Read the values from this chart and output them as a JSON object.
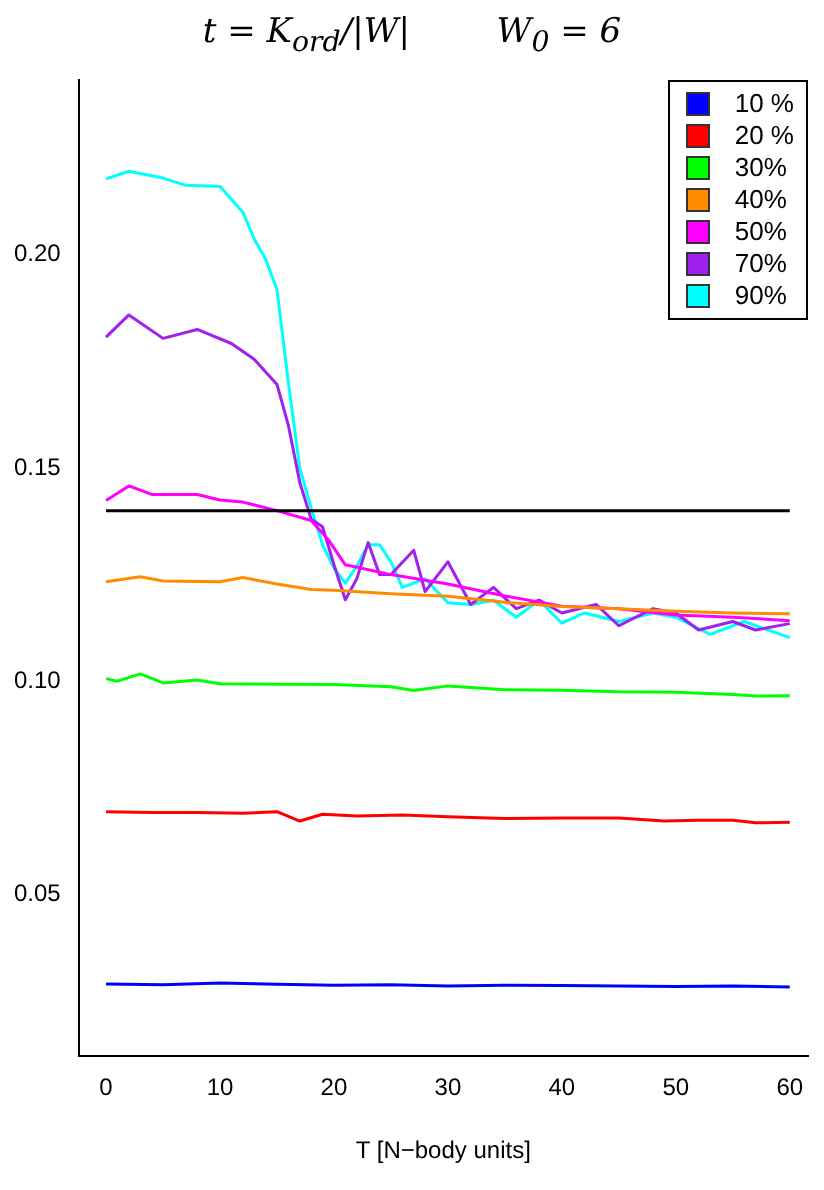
{
  "chart_data": {
    "type": "line",
    "title": "t = K$_{ord}$/|W|        W$_{0}$ = 6",
    "xlabel": "T [N−body units]",
    "xlim": [
      -2.4,
      61.6
    ],
    "xticks": [
      0,
      10,
      20,
      30,
      40,
      50,
      60
    ],
    "ylim": [
      0.012,
      0.241
    ],
    "yticks": [
      0.05,
      {
        "value": 0.1,
        "label": "0.10"
      },
      0.15,
      {
        "value": 0.2,
        "label": "0.20"
      }
    ],
    "grid": false,
    "legend": "top right",
    "marker": "none",
    "line_style": "solid",
    "ref_lines": [
      {
        "axis": "y",
        "value": 0.14,
        "color": "#000000"
      }
    ],
    "series": [
      {
        "name": "10 %",
        "color": "#0000ff",
        "x": [
          0,
          5,
          10,
          15,
          20,
          25,
          30,
          35,
          40,
          45,
          50,
          55,
          60
        ],
        "values": [
          0.029,
          0.0288,
          0.0292,
          0.0289,
          0.0287,
          0.0288,
          0.0285,
          0.0287,
          0.0286,
          0.0285,
          0.0284,
          0.0285,
          0.0283
        ]
      },
      {
        "name": "20 %",
        "color": "#ff0000",
        "x": [
          0,
          4,
          8,
          12,
          15,
          17,
          19,
          22,
          26,
          30,
          35,
          40,
          45,
          49,
          52,
          55,
          57,
          60
        ],
        "values": [
          0.0694,
          0.0692,
          0.0692,
          0.069,
          0.0694,
          0.0672,
          0.0688,
          0.0684,
          0.0686,
          0.0682,
          0.0678,
          0.0679,
          0.0679,
          0.0672,
          0.0674,
          0.0674,
          0.0668,
          0.0669
        ]
      },
      {
        "name": "30%",
        "color": "#00ff00",
        "x": [
          0,
          1,
          3,
          5,
          8,
          10,
          15,
          20,
          25,
          27,
          30,
          35,
          40,
          45,
          50,
          55,
          57,
          60
        ],
        "values": [
          0.1006,
          0.1,
          0.1017,
          0.0996,
          0.1003,
          0.0994,
          0.0993,
          0.0992,
          0.0987,
          0.0978,
          0.0989,
          0.098,
          0.0979,
          0.0975,
          0.0974,
          0.0969,
          0.0965,
          0.0966
        ]
      },
      {
        "name": "40%",
        "color": "#ff8c00",
        "x": [
          0,
          3,
          5,
          10,
          12,
          15,
          18,
          20,
          25,
          30,
          35,
          40,
          45,
          50,
          55,
          60
        ],
        "values": [
          0.1233,
          0.1245,
          0.1235,
          0.1233,
          0.1243,
          0.1228,
          0.1215,
          0.1213,
          0.1205,
          0.1199,
          0.1185,
          0.1175,
          0.117,
          0.1164,
          0.116,
          0.1158
        ]
      },
      {
        "name": "50%",
        "color": "#ff00ff",
        "x": [
          0,
          2,
          4,
          8,
          10,
          12,
          15,
          18,
          19.5,
          21,
          25,
          30,
          35,
          40,
          45,
          50,
          55,
          60
        ],
        "values": [
          0.1424,
          0.1458,
          0.1438,
          0.1438,
          0.1425,
          0.142,
          0.14,
          0.1377,
          0.1332,
          0.1273,
          0.125,
          0.1228,
          0.12,
          0.1176,
          0.117,
          0.1155,
          0.115,
          0.1142
        ]
      },
      {
        "name": "70%",
        "color": "#a020f0",
        "x": [
          0,
          2,
          5,
          8,
          11,
          13,
          15,
          16,
          17,
          18,
          19,
          20,
          21,
          22,
          23,
          24,
          25,
          27,
          28,
          30,
          32,
          34,
          36,
          38,
          40,
          43,
          45,
          48,
          50,
          52,
          55,
          57,
          60
        ],
        "values": [
          0.1807,
          0.1859,
          0.1804,
          0.1825,
          0.1792,
          0.1755,
          0.1696,
          0.16,
          0.1466,
          0.138,
          0.1362,
          0.1273,
          0.1191,
          0.124,
          0.1325,
          0.125,
          0.125,
          0.1307,
          0.121,
          0.128,
          0.118,
          0.122,
          0.117,
          0.119,
          0.116,
          0.118,
          0.113,
          0.117,
          0.116,
          0.112,
          0.114,
          0.112,
          0.1135
        ]
      },
      {
        "name": "90%",
        "color": "#00ffff",
        "x": [
          0,
          2,
          5,
          7,
          10,
          12,
          13,
          14,
          15,
          16,
          17,
          18,
          19,
          20,
          21,
          22,
          23,
          24,
          25,
          26,
          28,
          30,
          32,
          34,
          36,
          38,
          40,
          42,
          45,
          48,
          50,
          53,
          56,
          60
        ],
        "values": [
          0.2178,
          0.2196,
          0.218,
          0.2163,
          0.216,
          0.21,
          0.2037,
          0.199,
          0.1918,
          0.17,
          0.15,
          0.1406,
          0.132,
          0.1265,
          0.123,
          0.127,
          0.132,
          0.132,
          0.128,
          0.122,
          0.124,
          0.1184,
          0.118,
          0.119,
          0.115,
          0.119,
          0.1136,
          0.116,
          0.114,
          0.116,
          0.115,
          0.111,
          0.114,
          0.1102
        ]
      }
    ]
  }
}
